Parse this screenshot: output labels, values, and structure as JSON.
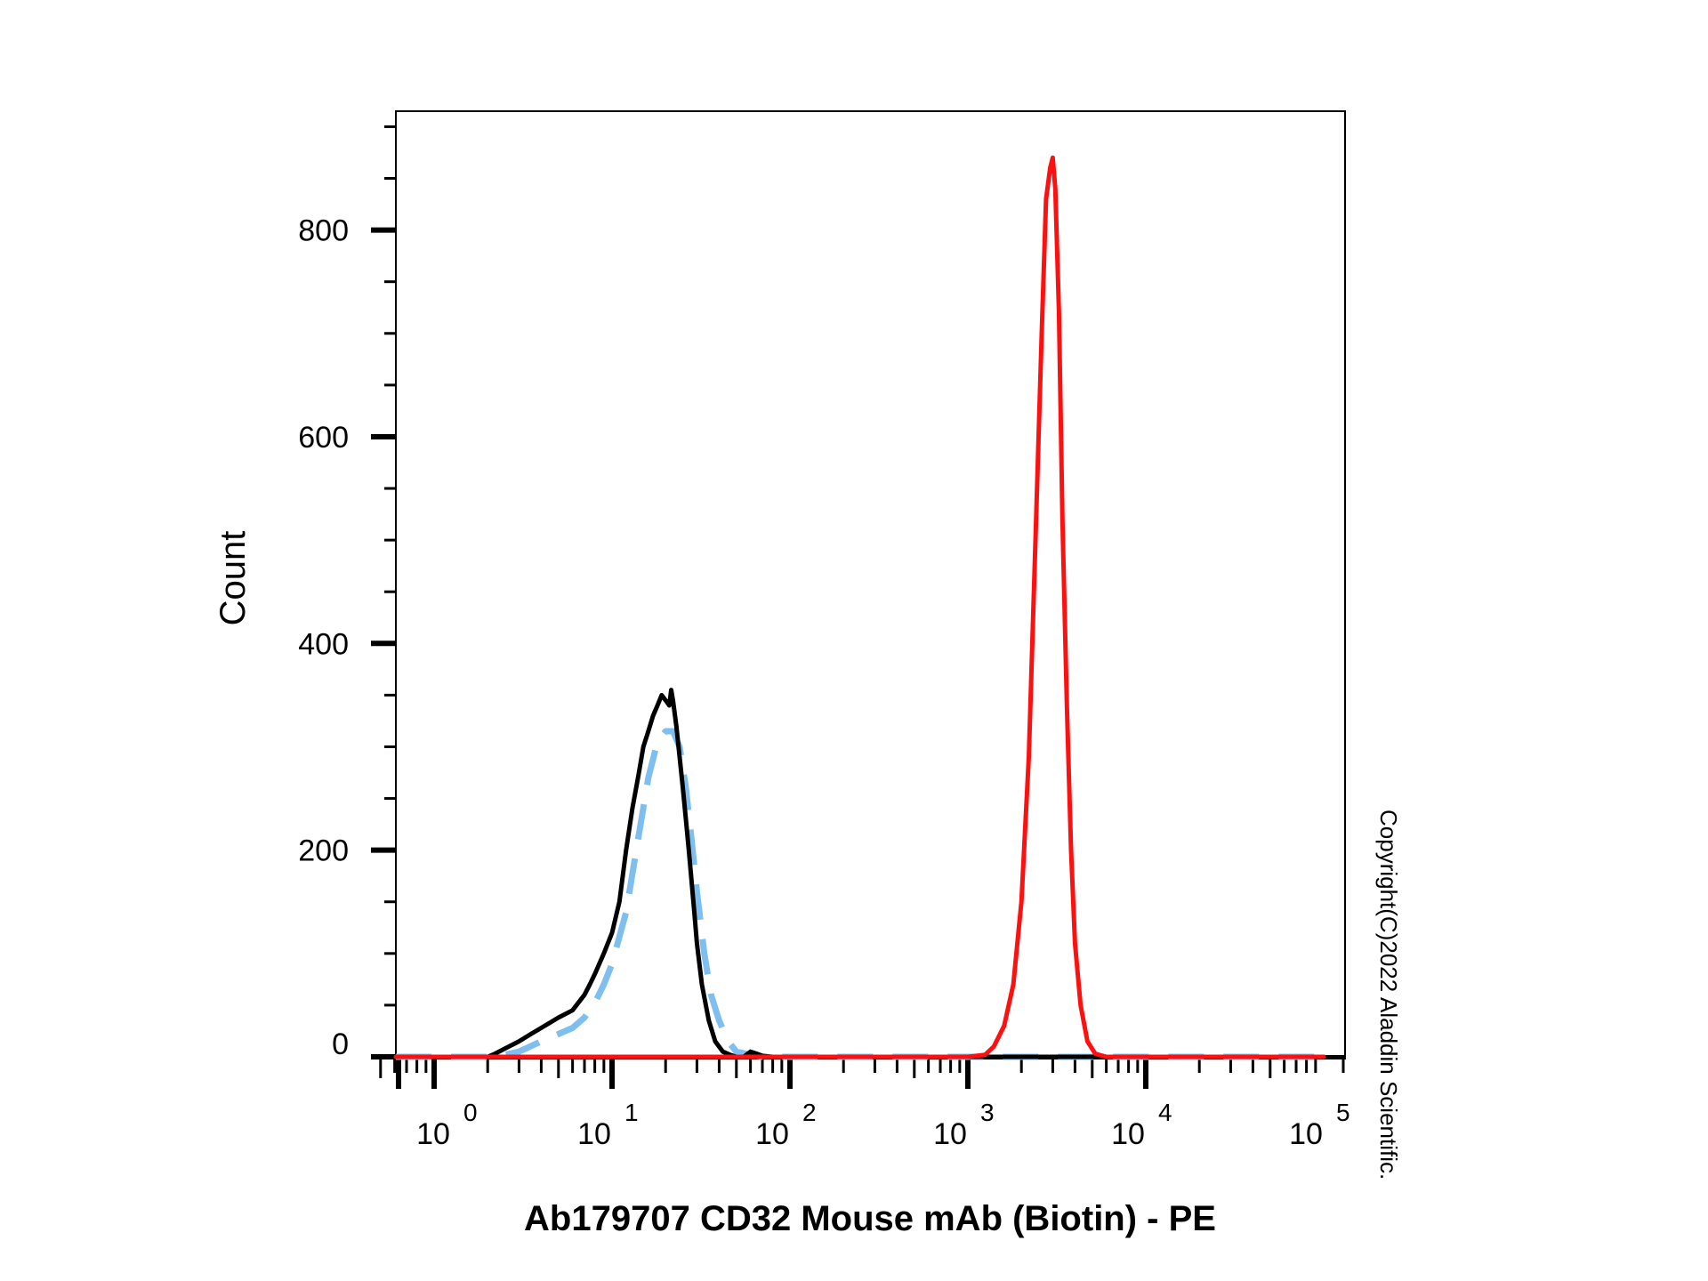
{
  "chart_data": {
    "type": "line",
    "title": "",
    "xlabel": "Ab179707 CD32 Mouse mAb (Biotin) - PE",
    "ylabel": "Count",
    "x_scale": "log",
    "xlim": [
      0.5,
      120000
    ],
    "ylim": [
      0,
      915
    ],
    "y_ticks": [
      0,
      200,
      400,
      600,
      800
    ],
    "x_tick_labels": [
      {
        "base": "10",
        "exp": "0"
      },
      {
        "base": "10",
        "exp": "1"
      },
      {
        "base": "10",
        "exp": "2"
      },
      {
        "base": "10",
        "exp": "3"
      },
      {
        "base": "10",
        "exp": "4"
      },
      {
        "base": "10",
        "exp": "5"
      }
    ],
    "grid": false,
    "legend": "none",
    "copyright": "Copyright(C)2022 Aladdin Scientific.",
    "series": [
      {
        "color": "#7fbff0",
        "style": "dashed",
        "x": [
          0.5,
          1,
          2.2,
          3,
          4,
          5,
          6,
          7,
          8,
          9,
          10,
          12,
          14,
          16,
          18,
          20,
          22,
          24,
          26,
          28,
          30,
          33,
          36,
          40,
          45,
          50,
          60,
          70,
          80,
          100,
          150,
          200,
          500,
          1000,
          3000,
          10000,
          100000
        ],
        "y": [
          0,
          0,
          0,
          5,
          15,
          22,
          28,
          38,
          52,
          70,
          90,
          140,
          210,
          270,
          305,
          315,
          315,
          300,
          260,
          210,
          160,
          100,
          60,
          35,
          15,
          5,
          2,
          0,
          0,
          0,
          0,
          0,
          0,
          0,
          0,
          0,
          0
        ]
      },
      {
        "color": "#000000",
        "style": "solid",
        "x": [
          0.5,
          1,
          2,
          2.2,
          2.5,
          3,
          3.5,
          4,
          5,
          6,
          7,
          7.5,
          8,
          9,
          10,
          11,
          12,
          13,
          14,
          15,
          16,
          17,
          18,
          19,
          20,
          21,
          21.5,
          22,
          23,
          24,
          25,
          26,
          27,
          28,
          29,
          30,
          32,
          35,
          38,
          42,
          46,
          50,
          55,
          60,
          65,
          70,
          80,
          90,
          100,
          1000,
          100000
        ],
        "y": [
          0,
          0,
          0,
          3,
          8,
          15,
          22,
          28,
          38,
          45,
          60,
          70,
          80,
          100,
          120,
          150,
          200,
          240,
          270,
          300,
          315,
          330,
          340,
          350,
          345,
          340,
          355,
          345,
          320,
          290,
          260,
          230,
          200,
          170,
          140,
          110,
          70,
          35,
          15,
          5,
          2,
          0,
          0,
          5,
          3,
          1,
          0,
          0,
          0,
          0,
          0
        ]
      },
      {
        "color": "#ff1010",
        "style": "solid",
        "x": [
          0.5,
          2,
          100,
          500,
          1000,
          1250,
          1400,
          1600,
          1800,
          2000,
          2200,
          2400,
          2600,
          2750,
          2900,
          3000,
          3100,
          3250,
          3400,
          3600,
          3800,
          4000,
          4300,
          4700,
          5200,
          6000,
          10000,
          100000
        ],
        "y": [
          0,
          0,
          0,
          0,
          0,
          2,
          10,
          30,
          70,
          150,
          290,
          500,
          700,
          830,
          860,
          870,
          840,
          720,
          520,
          340,
          200,
          110,
          50,
          15,
          3,
          0,
          0,
          0
        ]
      }
    ]
  }
}
